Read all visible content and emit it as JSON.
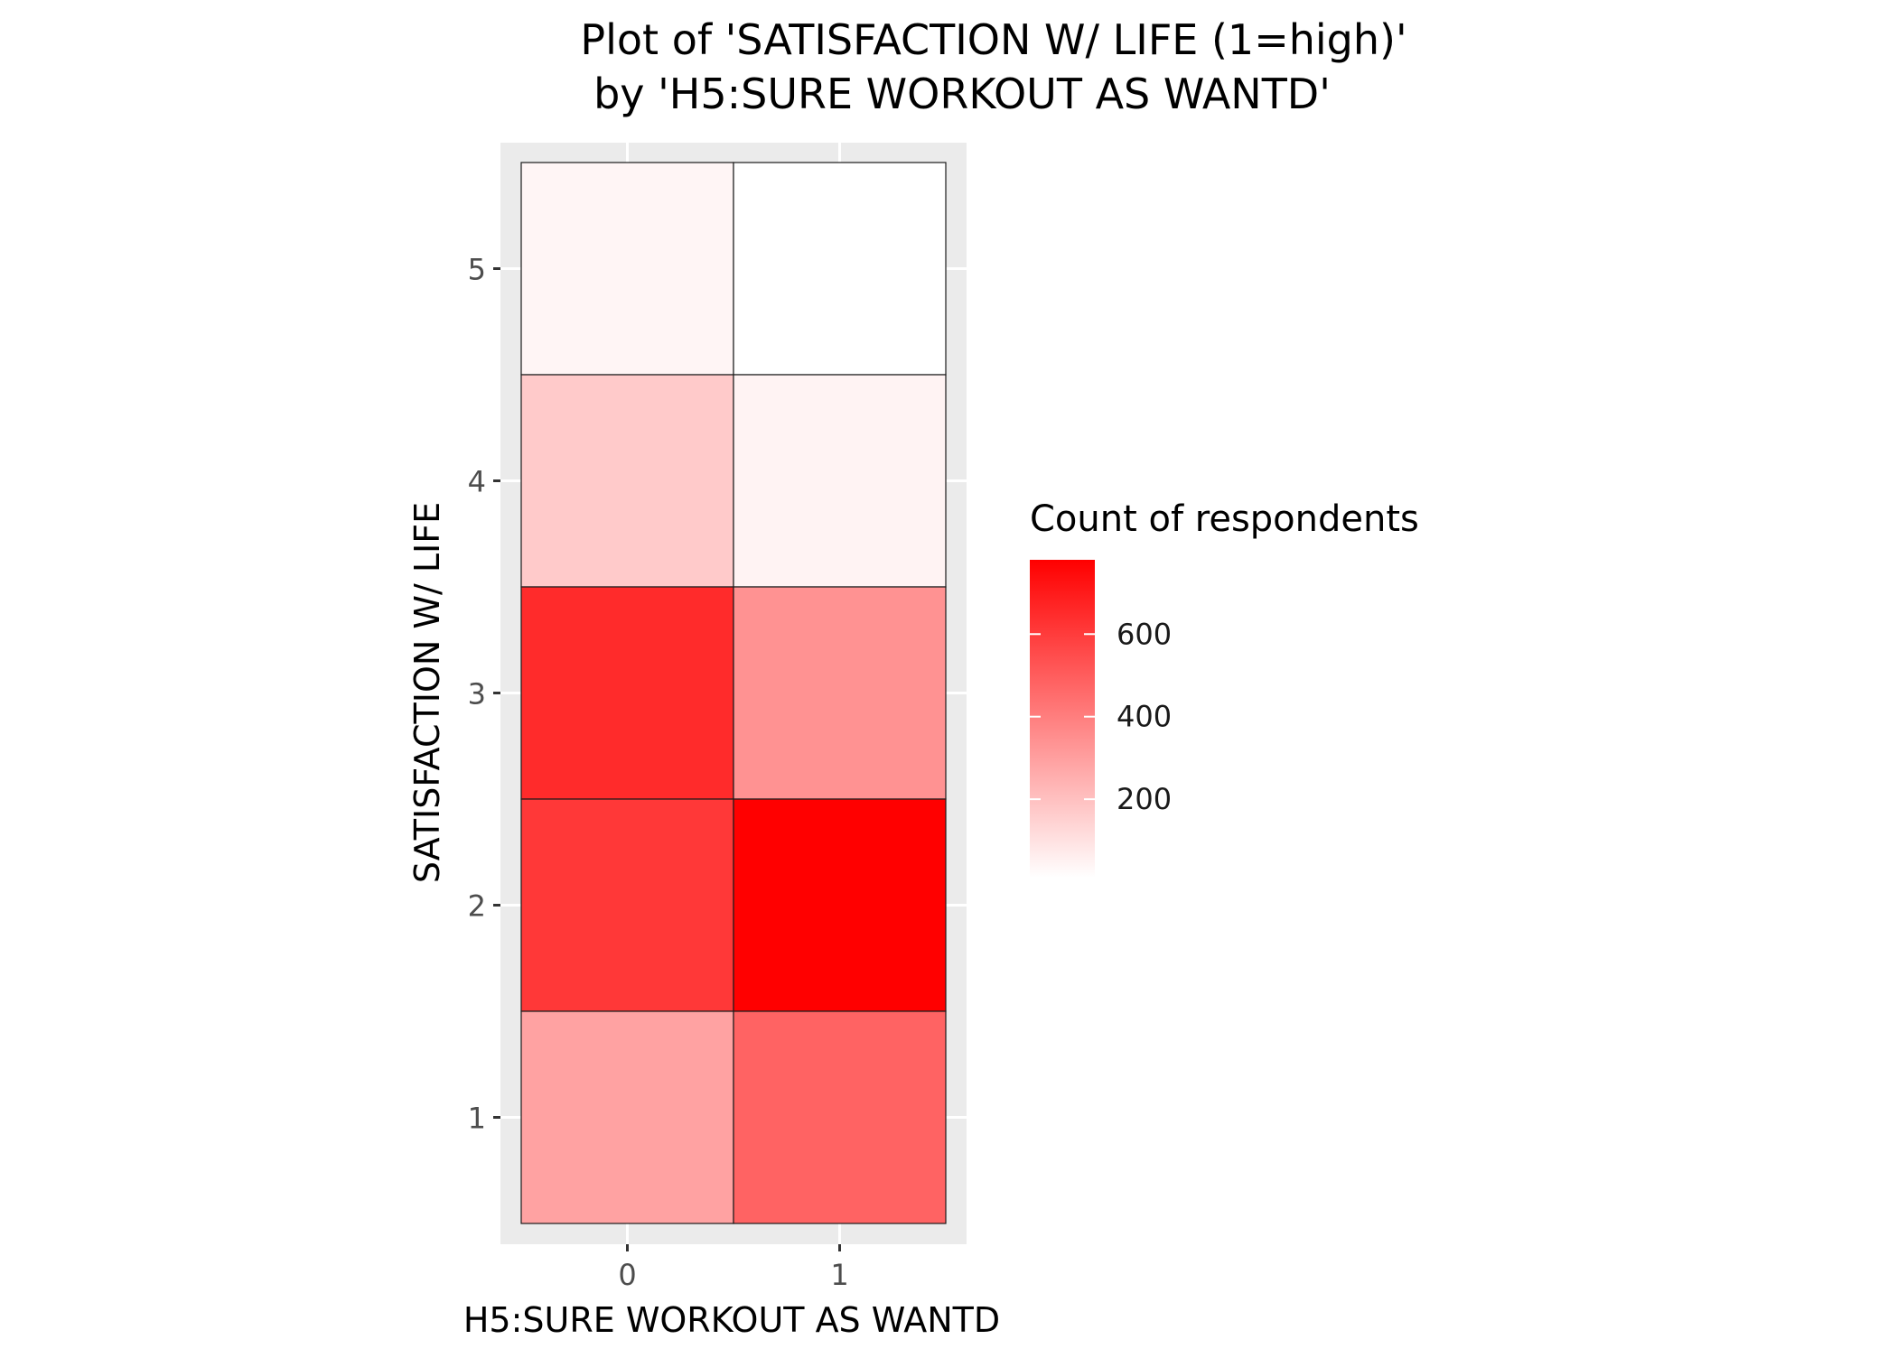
{
  "chart_data": {
    "type": "heatmap",
    "title": "Plot of 'SATISFACTION W/ LIFE (1=high)'",
    "subtitle": "by 'H5:SURE WORKOUT AS WANTD'",
    "xlabel": "H5:SURE WORKOUT AS WANTD",
    "ylabel": "SATISFACTION W/ LIFE",
    "x_categories": [
      "0",
      "1"
    ],
    "y_categories": [
      "1",
      "2",
      "3",
      "4",
      "5"
    ],
    "cells": [
      {
        "x": "0",
        "y": "5",
        "value": 40
      },
      {
        "x": "1",
        "y": "5",
        "value": 10
      },
      {
        "x": "0",
        "y": "4",
        "value": 170
      },
      {
        "x": "1",
        "y": "4",
        "value": 45
      },
      {
        "x": "0",
        "y": "3",
        "value": 650
      },
      {
        "x": "1",
        "y": "3",
        "value": 340
      },
      {
        "x": "0",
        "y": "2",
        "value": 610
      },
      {
        "x": "1",
        "y": "2",
        "value": 780
      },
      {
        "x": "0",
        "y": "1",
        "value": 290
      },
      {
        "x": "1",
        "y": "1",
        "value": 480
      }
    ],
    "color_scale": {
      "low": "#ffffff",
      "high": "#ff0000",
      "min": 10,
      "max": 780
    },
    "legend": {
      "title": "Count of respondents",
      "ticks": [
        200,
        400,
        600
      ],
      "position": "right"
    },
    "grid": true,
    "panel_background": "#ebebeb"
  }
}
